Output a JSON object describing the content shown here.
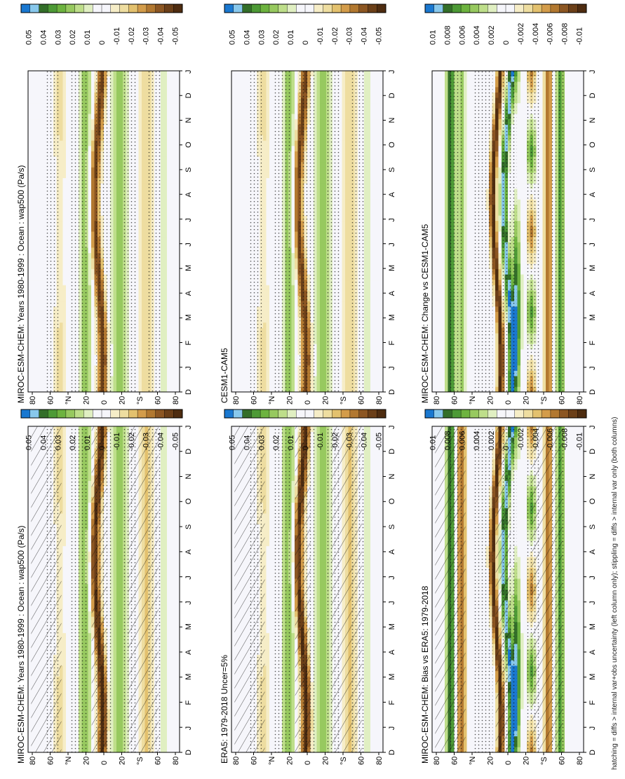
{
  "figure": {
    "footnote": "hatching = diffs > internal var+obs uncertainty (left column only); stippling = diffs > internal var only (both columns)"
  },
  "colors": {
    "blue2": "#1a78d0",
    "blue1": "#88c8ec",
    "g5": "#336e29",
    "g4": "#4d9a36",
    "g3": "#6db33f",
    "g2": "#97c95f",
    "g1": "#bede8a",
    "g0": "#e0efc2",
    "w": "#f6f6fb",
    "y0": "#f6edc7",
    "y1": "#eedda0",
    "b1": "#e3c16e",
    "b2": "#d39c4a",
    "b3": "#b27830",
    "b4": "#8c5622",
    "b5": "#6b3f18",
    "b6": "#4e2c10"
  },
  "chart_data": [
    {
      "id": "tl",
      "type": "heatmap",
      "title": "MIROC-ESM-CHEM: Years 1980-1999 : Ocean : wap500 (Pa/s)",
      "x_tick_labels": [
        "D",
        "J",
        "F",
        "M",
        "A",
        "M",
        "J",
        "J",
        "A",
        "S",
        "O",
        "N",
        "D",
        "J"
      ],
      "y_tick_labels": [
        "80",
        "60",
        "°N",
        "20",
        "0",
        "20",
        "°S",
        "60",
        "80"
      ],
      "colorbar_labels": [
        "0.05",
        "0.04",
        "0.03",
        "0.02",
        "0.01",
        "0",
        "-0.01",
        "-0.02",
        "-0.03",
        "-0.04",
        "-0.05"
      ],
      "field": "mean",
      "hatching": true,
      "stippling": true
    },
    {
      "id": "tr",
      "type": "heatmap",
      "title": "MIROC-ESM-CHEM: Years 1980-1999 : Ocean : wap500 (Pa/s)",
      "x_tick_labels": [
        "D",
        "J",
        "F",
        "M",
        "A",
        "M",
        "J",
        "J",
        "A",
        "S",
        "O",
        "N",
        "D",
        "J"
      ],
      "y_tick_labels": [
        "80",
        "60",
        "°N",
        "20",
        "0",
        "20",
        "°S",
        "60",
        "80"
      ],
      "colorbar_labels": [
        "0.05",
        "0.04",
        "0.03",
        "0.02",
        "0.01",
        "0",
        "-0.01",
        "-0.02",
        "-0.03",
        "-0.04",
        "-0.05"
      ],
      "field": "mean",
      "hatching": false,
      "stippling": true
    },
    {
      "id": "ml",
      "type": "heatmap",
      "title": "ERA5: 1979-2018 Uncer=5%",
      "x_tick_labels": [
        "D",
        "J",
        "F",
        "M",
        "A",
        "M",
        "J",
        "J",
        "A",
        "S",
        "O",
        "N",
        "D",
        "J"
      ],
      "y_tick_labels": [
        "80",
        "60",
        "°N",
        "20",
        "0",
        "20",
        "°S",
        "60",
        "80"
      ],
      "colorbar_labels": [
        "0.05",
        "0.04",
        "0.03",
        "0.02",
        "0.01",
        "0",
        "-0.01",
        "-0.02",
        "-0.03",
        "-0.04",
        "-0.05"
      ],
      "field": "mean",
      "hatching": true,
      "stippling": true
    },
    {
      "id": "mr",
      "type": "heatmap",
      "title": "CESM1-CAM5",
      "x_tick_labels": [
        "D",
        "J",
        "F",
        "M",
        "A",
        "M",
        "J",
        "J",
        "A",
        "S",
        "O",
        "N",
        "D",
        "J"
      ],
      "y_tick_labels": [
        "80",
        "60",
        "°N",
        "20",
        "0",
        "20",
        "°S",
        "60",
        "80"
      ],
      "colorbar_labels": [
        "0.05",
        "0.04",
        "0.03",
        "0.02",
        "0.01",
        "0",
        "-0.01",
        "-0.02",
        "-0.03",
        "-0.04",
        "-0.05"
      ],
      "field": "mean",
      "hatching": false,
      "stippling": true
    },
    {
      "id": "bl",
      "type": "heatmap",
      "title": "MIROC-ESM-CHEM: Bias vs ERA5: 1979-2018",
      "x_tick_labels": [
        "D",
        "J",
        "F",
        "M",
        "A",
        "M",
        "J",
        "J",
        "A",
        "S",
        "O",
        "N",
        "D",
        "J"
      ],
      "y_tick_labels": [
        "80",
        "60",
        "°N",
        "20",
        "0",
        "20",
        "°S",
        "60",
        "80"
      ],
      "colorbar_labels": [
        "0.01",
        "0.008",
        "0.006",
        "0.004",
        "0.002",
        "0",
        "-0.002",
        "-0.004",
        "-0.006",
        "-0.008",
        "-0.01"
      ],
      "field": "diff",
      "hatching": true,
      "stippling": true
    },
    {
      "id": "br",
      "type": "heatmap",
      "title": "MIROC-ESM-CHEM: Change vs CESM1-CAM5",
      "x_tick_labels": [
        "D",
        "J",
        "F",
        "M",
        "A",
        "M",
        "J",
        "J",
        "A",
        "S",
        "O",
        "N",
        "D",
        "J"
      ],
      "y_tick_labels": [
        "80",
        "60",
        "°N",
        "20",
        "0",
        "20",
        "°S",
        "60",
        "80"
      ],
      "colorbar_labels": [
        "0.01",
        "0.008",
        "0.006",
        "0.004",
        "0.002",
        "0",
        "-0.002",
        "-0.004",
        "-0.006",
        "-0.008",
        "-0.01"
      ],
      "field": "diff",
      "hatching": false,
      "stippling": true
    }
  ]
}
